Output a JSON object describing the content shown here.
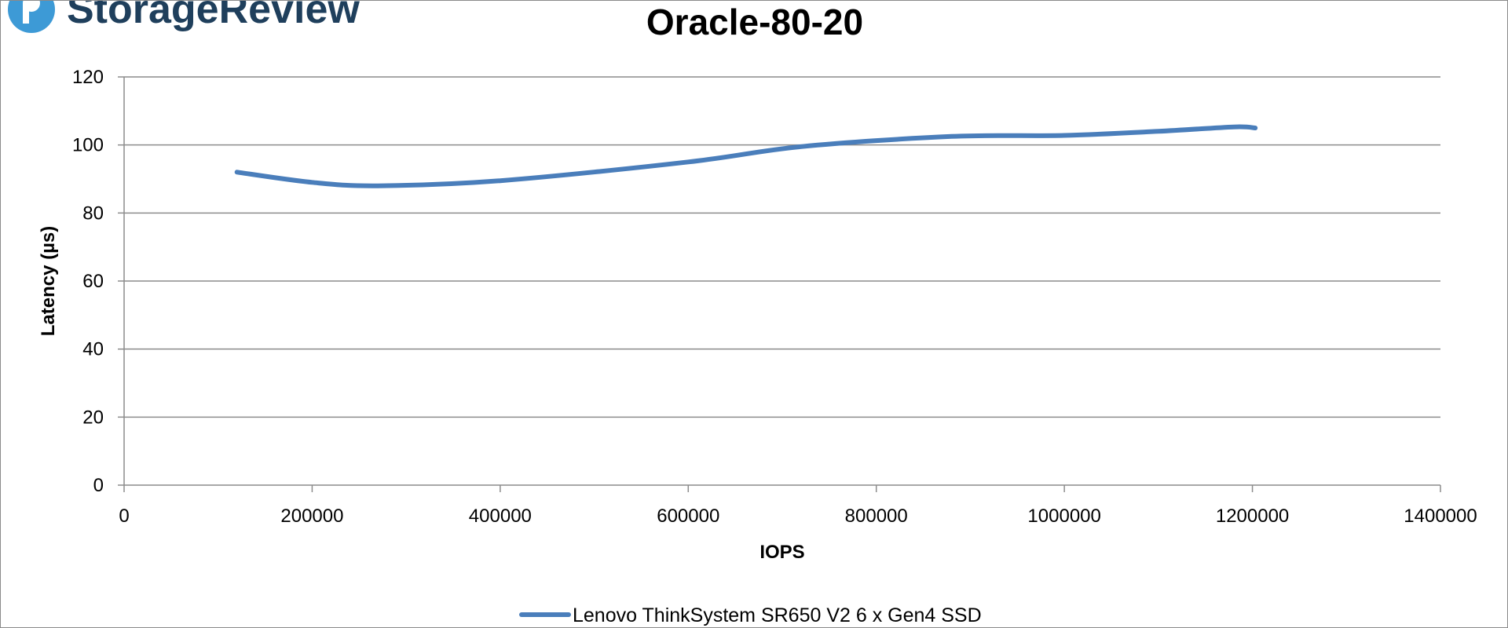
{
  "logo": {
    "text": "StorageReview",
    "icon": "storagereview-logo-icon",
    "text_color": "#1f3f5c",
    "icon_color": "#3d9ad6"
  },
  "chart_data": {
    "type": "line",
    "title": "Oracle-80-20",
    "xlabel": "IOPS",
    "ylabel": "Latency (µs)",
    "xlim": [
      0,
      1400000
    ],
    "ylim": [
      0,
      120
    ],
    "x_ticks": [
      "0",
      "200000",
      "400000",
      "600000",
      "800000",
      "1000000",
      "1200000",
      "1400000"
    ],
    "y_ticks": [
      "0",
      "20",
      "40",
      "60",
      "80",
      "100",
      "120"
    ],
    "grid": "horizontal",
    "legend_position": "bottom",
    "series": [
      {
        "name": "Lenovo ThinkSystem SR650 V2 6 x Gen4 SSD",
        "color": "#4a7ebb",
        "x": [
          120000,
          200000,
          270000,
          400000,
          600000,
          720000,
          880000,
          1000000,
          1100000,
          1180000,
          1203000
        ],
        "y": [
          92,
          89,
          88,
          89.5,
          95,
          99.5,
          102.5,
          102.8,
          104,
          105.3,
          105
        ]
      }
    ]
  }
}
